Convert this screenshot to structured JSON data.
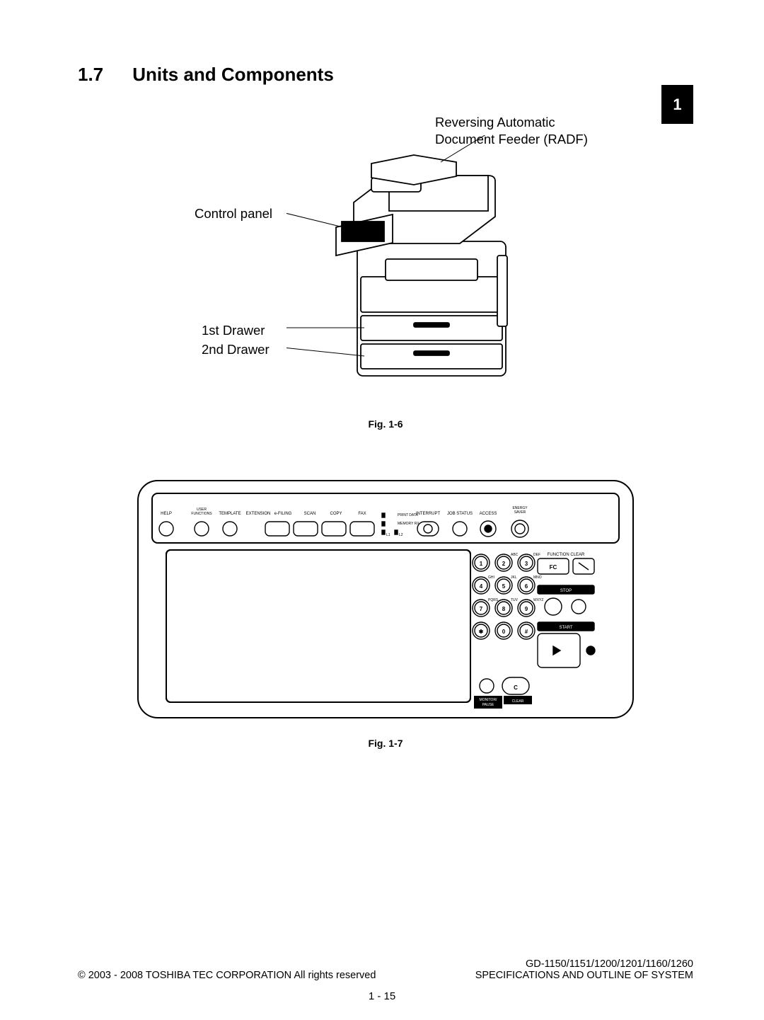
{
  "section": {
    "number": "1.7",
    "title": "Units and Components"
  },
  "tab": {
    "label": "1",
    "bg": "#000000",
    "fg": "#ffffff"
  },
  "fig1": {
    "caption": "Fig. 1-6",
    "callouts": {
      "radf_line1": "Reversing Automatic",
      "radf_line2": "Document Feeder (RADF)",
      "control_panel": "Control panel",
      "drawer1": "1st Drawer",
      "drawer2": "2nd Drawer"
    }
  },
  "fig2": {
    "caption": "Fig. 1-7",
    "top_row": {
      "help": "HELP",
      "user_functions": "USER\nFUNCTIONS",
      "template": "TEMPLATE",
      "extension": "EXTENSION",
      "efiling": "e-FILING",
      "scan": "SCAN",
      "copy": "COPY",
      "fax": "FAX",
      "print_data": "PRINT DATA",
      "memory_rx": "MEMORY RX",
      "l1": "L1",
      "l2": "L2",
      "interrupt": "INTERRUPT",
      "job_status": "JOB STATUS",
      "access": "ACCESS",
      "energy_saver": "ENERGY\nSAVER"
    },
    "right_col": {
      "function_clear": "FUNCTION CLEAR",
      "fc": "FC",
      "stop": "STOP",
      "start": "START",
      "clear": "CLEAR",
      "monitor_pause": "MONITOR/\nPAUSE"
    },
    "keypad": {
      "keys": [
        {
          "n": "1",
          "sub": ""
        },
        {
          "n": "2",
          "sub": "ABC"
        },
        {
          "n": "3",
          "sub": "DEF"
        },
        {
          "n": "4",
          "sub": "GHI"
        },
        {
          "n": "5",
          "sub": "JKL"
        },
        {
          "n": "6",
          "sub": "MNO"
        },
        {
          "n": "7",
          "sub": "PQRS"
        },
        {
          "n": "8",
          "sub": "TUV"
        },
        {
          "n": "9",
          "sub": "WXYZ"
        },
        {
          "n": "✱",
          "sub": ""
        },
        {
          "n": "0",
          "sub": ""
        },
        {
          "n": "#",
          "sub": ""
        }
      ],
      "clear_key": "C"
    }
  },
  "footer": {
    "left": "© 2003 - 2008 TOSHIBA TEC CORPORATION All rights reserved",
    "right_line1": "GD-1150/1151/1200/1201/1160/1260",
    "right_line2": "SPECIFICATIONS AND OUTLINE OF SYSTEM",
    "page": "1 - 15"
  },
  "colors": {
    "stroke": "#000000",
    "bg": "#ffffff"
  }
}
